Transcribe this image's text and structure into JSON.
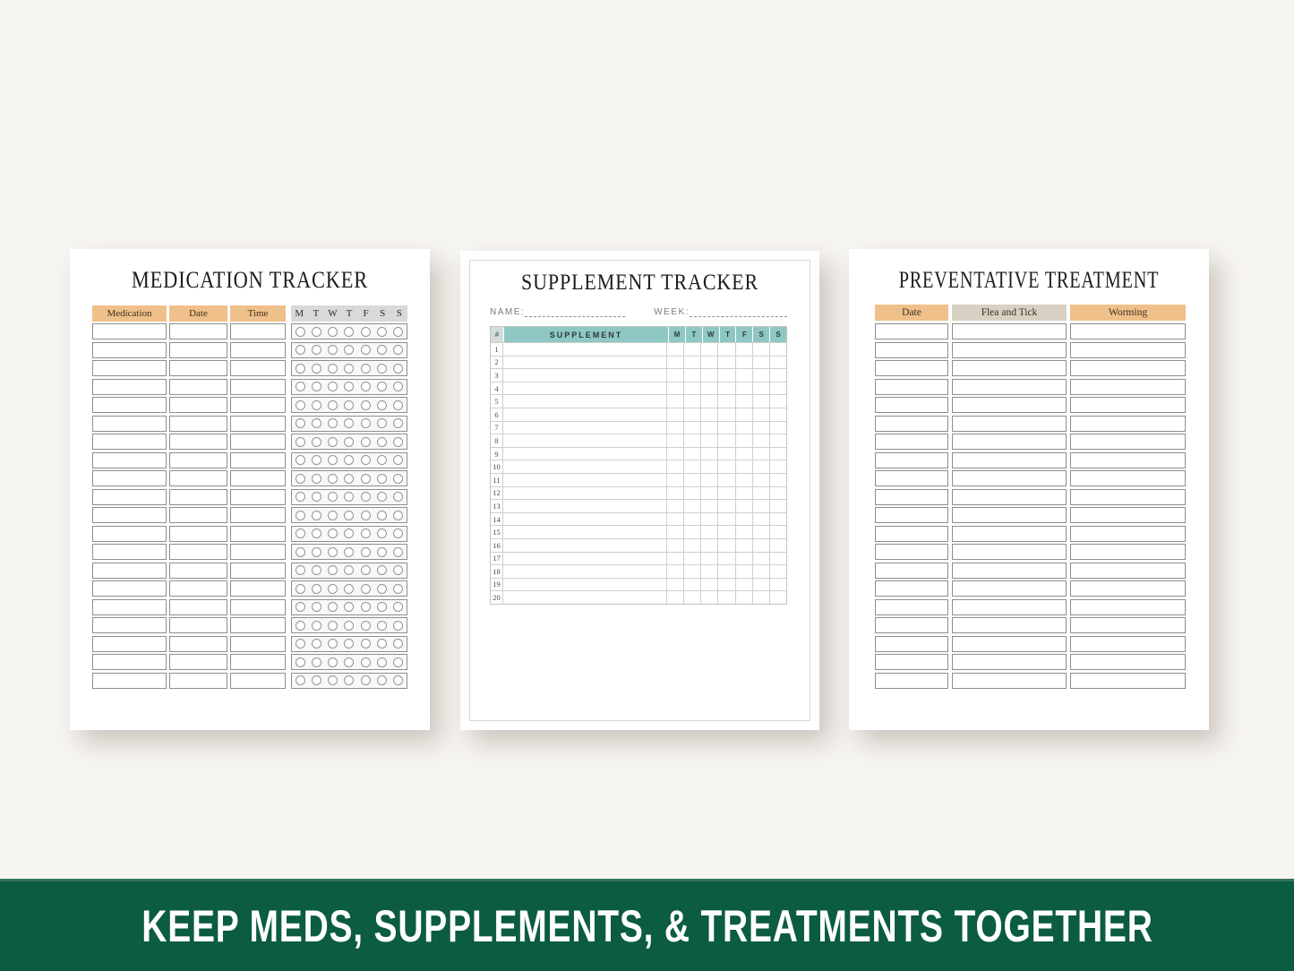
{
  "colors": {
    "background": "#f7f5f2",
    "orange": "#f0c08a",
    "day_header_gray": "#d9d9d9",
    "teal": "#8ec7c3",
    "hash_header": "#d4dcdc",
    "beige": "#d8d0c2",
    "banner_green": "#0b5c41",
    "banner_text": "#ffffff"
  },
  "pages": {
    "medication": {
      "title": "MEDICATION TRACKER",
      "columns": [
        "Medication",
        "Date",
        "Time"
      ],
      "day_headers": [
        "M",
        "T",
        "W",
        "T",
        "F",
        "S",
        "S"
      ],
      "row_count": 20
    },
    "supplement": {
      "title": "SUPPLEMENT TRACKER",
      "name_label": "NAME:",
      "week_label": "WEEK:",
      "number_header": "#",
      "supplement_header": "SUPPLEMENT",
      "day_headers": [
        "M",
        "T",
        "W",
        "T",
        "F",
        "S",
        "S"
      ],
      "row_numbers": [
        1,
        2,
        3,
        4,
        5,
        6,
        7,
        8,
        9,
        10,
        11,
        12,
        13,
        14,
        15,
        16,
        17,
        18,
        19,
        20
      ]
    },
    "preventative": {
      "title": "PREVENTATIVE TREATMENT",
      "columns": [
        "Date",
        "Flea and Tick",
        "Worming"
      ],
      "row_count": 20
    }
  },
  "banner": {
    "text": "KEEP MEDS, SUPPLEMENTS, & TREATMENTS TOGETHER"
  }
}
